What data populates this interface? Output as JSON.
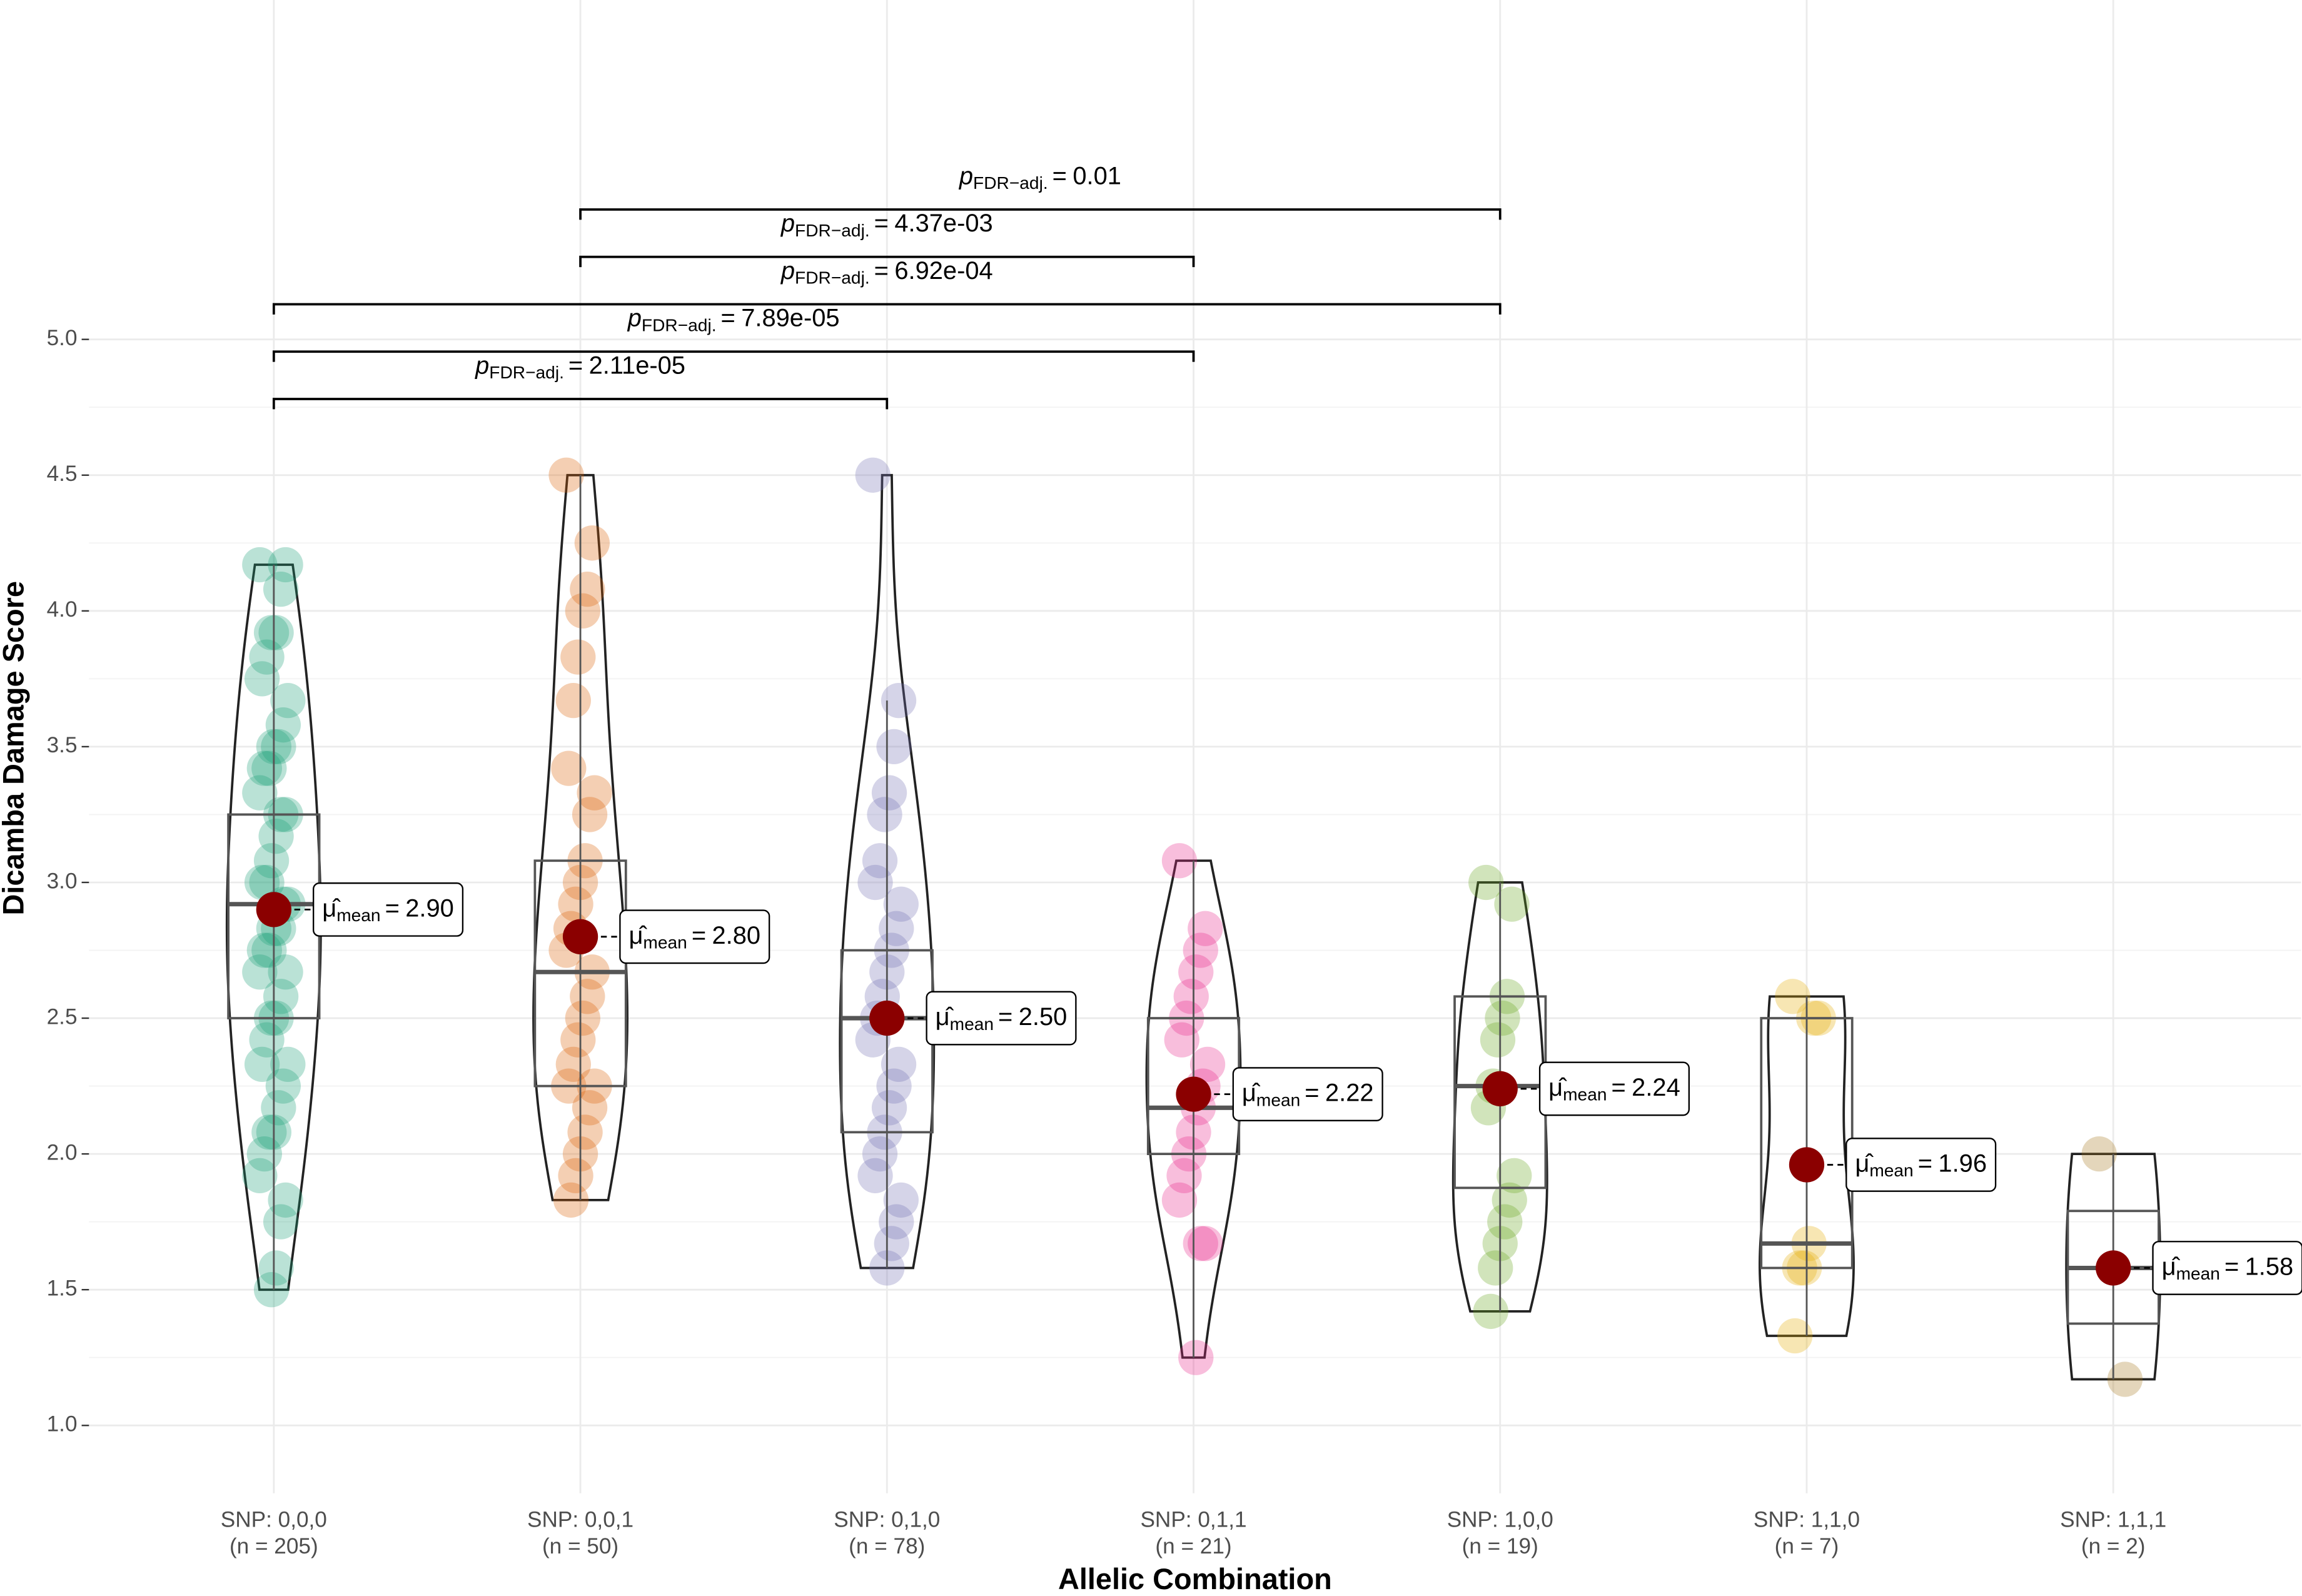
{
  "chart_data": {
    "type": "violin",
    "x_label": "Allelic Combination",
    "y_label": "Dicamba Damage Score",
    "categories": [
      "SNP: 0,0,0",
      "SNP: 0,0,1",
      "SNP: 0,1,0",
      "SNP: 0,1,1",
      "SNP: 1,0,0",
      "SNP: 1,1,0",
      "SNP: 1,1,1"
    ],
    "n_labels": [
      "(n = 205)",
      "(n = 50)",
      "(n = 78)",
      "(n = 21)",
      "(n = 19)",
      "(n = 7)",
      "(n = 2)"
    ],
    "colors": [
      "#1b9e77",
      "#d95f02",
      "#7570b3",
      "#e7298a",
      "#66a61e",
      "#e6ab02",
      "#a6761d"
    ],
    "ylim": [
      0.75,
      6.25
    ],
    "yticks": [
      {
        "value": 1,
        "label": "1.0"
      },
      {
        "value": 1.5,
        "label": "1.5"
      },
      {
        "value": 2,
        "label": "2.0"
      },
      {
        "value": 2.5,
        "label": "2.5"
      },
      {
        "value": 3,
        "label": "3.0"
      },
      {
        "value": 3.5,
        "label": "3.5"
      },
      {
        "value": 4,
        "label": "4.0"
      },
      {
        "value": 4.5,
        "label": "4.5"
      },
      {
        "value": 5,
        "label": "5.0"
      }
    ],
    "grid": true,
    "points": [
      [
        4.17,
        4.17,
        4.08,
        3.92,
        3.92,
        3.83,
        3.75,
        3.67,
        3.58,
        3.5,
        3.5,
        3.42,
        3.42,
        3.33,
        3.25,
        3.25,
        3.17,
        3.08,
        3.0,
        3.0,
        2.92,
        2.92,
        2.83,
        2.83,
        2.75,
        2.75,
        2.67,
        2.67,
        2.58,
        2.5,
        2.5,
        2.42,
        2.33,
        2.33,
        2.25,
        2.17,
        2.08,
        2.08,
        2.0,
        1.92,
        1.83,
        1.75,
        1.58,
        1.5
      ],
      [
        4.5,
        4.25,
        4.08,
        4.0,
        3.83,
        3.67,
        3.42,
        3.33,
        3.25,
        3.08,
        3.0,
        2.92,
        2.83,
        2.75,
        2.67,
        2.58,
        2.5,
        2.42,
        2.33,
        2.25,
        2.25,
        2.17,
        2.08,
        2.0,
        1.92,
        1.83
      ],
      [
        4.5,
        3.67,
        3.5,
        3.33,
        3.25,
        3.08,
        3.0,
        2.92,
        2.83,
        2.75,
        2.67,
        2.58,
        2.5,
        2.42,
        2.33,
        2.25,
        2.17,
        2.08,
        2.0,
        1.92,
        1.83,
        1.75,
        1.67,
        1.58
      ],
      [
        3.08,
        2.83,
        2.75,
        2.67,
        2.58,
        2.5,
        2.42,
        2.33,
        2.25,
        2.17,
        2.08,
        2.0,
        1.92,
        1.83,
        1.67,
        1.67,
        1.25
      ],
      [
        3.0,
        2.92,
        2.58,
        2.5,
        2.42,
        2.25,
        2.17,
        1.92,
        1.83,
        1.75,
        1.67,
        1.58,
        1.42
      ],
      [
        2.58,
        2.5,
        2.5,
        1.67,
        1.58,
        1.58,
        1.33
      ],
      [
        2.0,
        1.17
      ]
    ],
    "box": {
      "q1": [
        2.5,
        2.25,
        2.08,
        2.0,
        1.875,
        1.58,
        1.375
      ],
      "median": [
        2.92,
        2.67,
        2.5,
        2.17,
        2.25,
        1.67,
        1.58
      ],
      "q3": [
        3.25,
        3.08,
        2.75,
        2.5,
        2.58,
        2.5,
        1.79
      ],
      "whisker_low": [
        1.5,
        1.83,
        1.58,
        1.25,
        1.42,
        1.33,
        1.17
      ],
      "whisker_high": [
        4.17,
        4.5,
        3.67,
        3.08,
        3.0,
        2.58,
        2.0
      ]
    },
    "means": [
      2.9,
      2.8,
      2.5,
      2.22,
      2.24,
      1.96,
      1.58
    ],
    "mean_value_labels": [
      "2.90",
      "2.80",
      "2.50",
      "2.22",
      "2.24",
      "1.96",
      "1.58"
    ],
    "mean_color": "#8b0000",
    "mean_symbol": "μ̂",
    "mean_subscript": "mean",
    "equals": "=",
    "p_symbol": "p",
    "p_subscript": "FDR−adj.",
    "comparisons": [
      {
        "groups": [
          "SNP: 0,0,0",
          "SNP: 0,1,0"
        ],
        "p_value": 2.11e-05,
        "p_label": "2.11e-05"
      },
      {
        "groups": [
          "SNP: 0,0,0",
          "SNP: 0,1,1"
        ],
        "p_value": 7.89e-05,
        "p_label": "7.89e-05"
      },
      {
        "groups": [
          "SNP: 0,0,0",
          "SNP: 1,0,0"
        ],
        "p_value": 0.000692,
        "p_label": "6.92e-04"
      },
      {
        "groups": [
          "SNP: 0,0,1",
          "SNP: 0,1,1"
        ],
        "p_value": 0.00437,
        "p_label": "4.37e-03"
      },
      {
        "groups": [
          "SNP: 0,0,1",
          "SNP: 1,0,0"
        ],
        "p_value": 0.01,
        "p_label": "0.01"
      }
    ]
  }
}
